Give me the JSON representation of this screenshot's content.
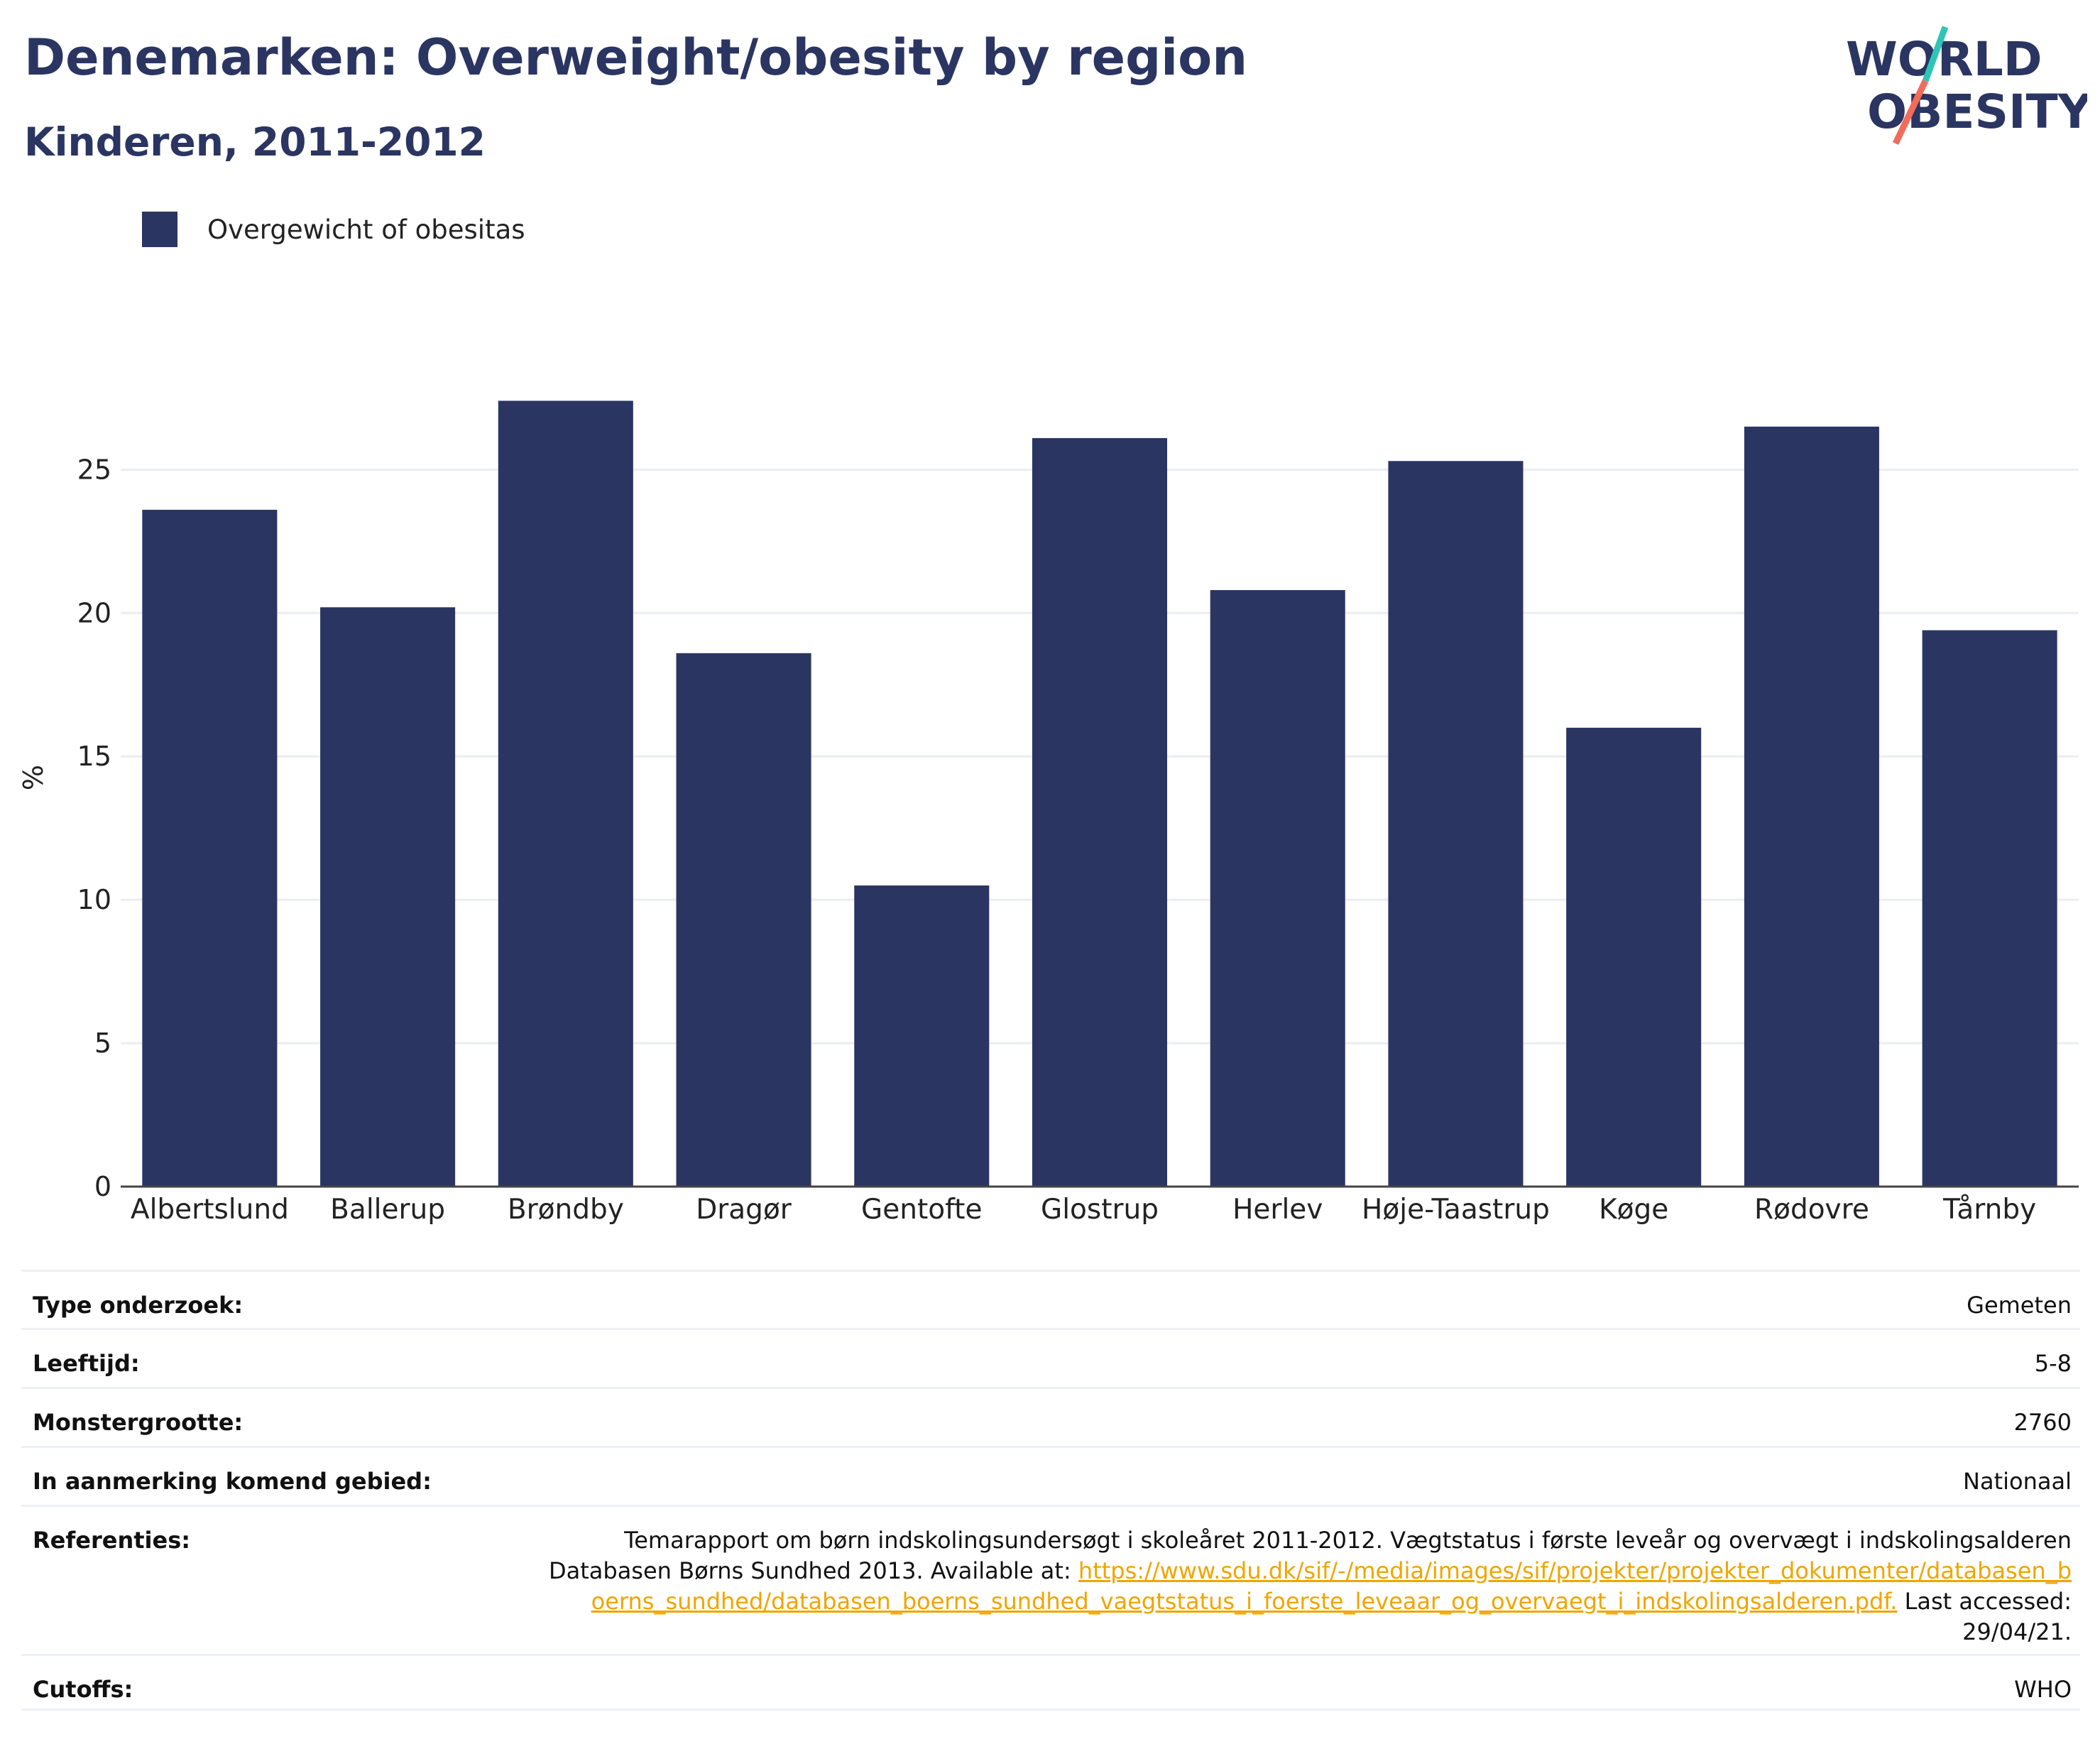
{
  "title": "Denemarken: Overweight/obesity by region",
  "subtitle": "Kinderen, 2011-2012",
  "logo": {
    "line1": "WORLD",
    "line2": "OBESITY"
  },
  "colors": {
    "bar": "#2b3562",
    "title": "#2b3562",
    "link": "#f0a500",
    "logo_teal": "#2ec4b6",
    "logo_coral": "#f26b5b"
  },
  "chart_data": {
    "type": "bar",
    "categories": [
      "Albertslund",
      "Ballerup",
      "Brøndby",
      "Dragør",
      "Gentofte",
      "Glostrup",
      "Herlev",
      "Høje-Taastrup",
      "Køge",
      "Rødovre",
      "Tårnby"
    ],
    "series": [
      {
        "name": "Overgewicht of obesitas",
        "values": [
          23.6,
          20.2,
          27.4,
          18.6,
          10.5,
          26.1,
          20.8,
          25.3,
          16.0,
          26.5,
          19.4
        ]
      }
    ],
    "title": "Denemarken: Overweight/obesity by region",
    "subtitle": "Kinderen, 2011-2012",
    "xlabel": "",
    "ylabel": "%",
    "ylim": [
      0,
      28.5
    ],
    "yticks": [
      0,
      5,
      10,
      15,
      20,
      25
    ],
    "grid": true,
    "legend_position": "top-left"
  },
  "info": {
    "rows": [
      {
        "label": "Type onderzoek:",
        "value": "Gemeten"
      },
      {
        "label": "Leeftijd:",
        "value": "5-8"
      },
      {
        "label": "Monstergrootte:",
        "value": "2760"
      },
      {
        "label": "In aanmerking komend gebied:",
        "value": "Nationaal"
      }
    ],
    "references": {
      "label": "Referenties:",
      "text": "Temarapport om børn indskolingsundersøgt i skoleåret 2011-2012. Vægtstatus i første leveår og overvægt i indskolingsalderen Databasen Børns Sundhed 2013. Available at: ",
      "link": "https://www.sdu.dk/sif/-/media/images/sif/projekter/projekter_dokumenter/databasen_boerns_sundhed/databasen_boerns_sundhed_vaegtstatus_i_foerste_leveaar_og_overvaegt_i_indskolingsalderen.pdf.",
      "suffix": " Last accessed: 29/04/21."
    },
    "cutoffs": {
      "label": "Cutoffs:",
      "value": "WHO"
    }
  }
}
